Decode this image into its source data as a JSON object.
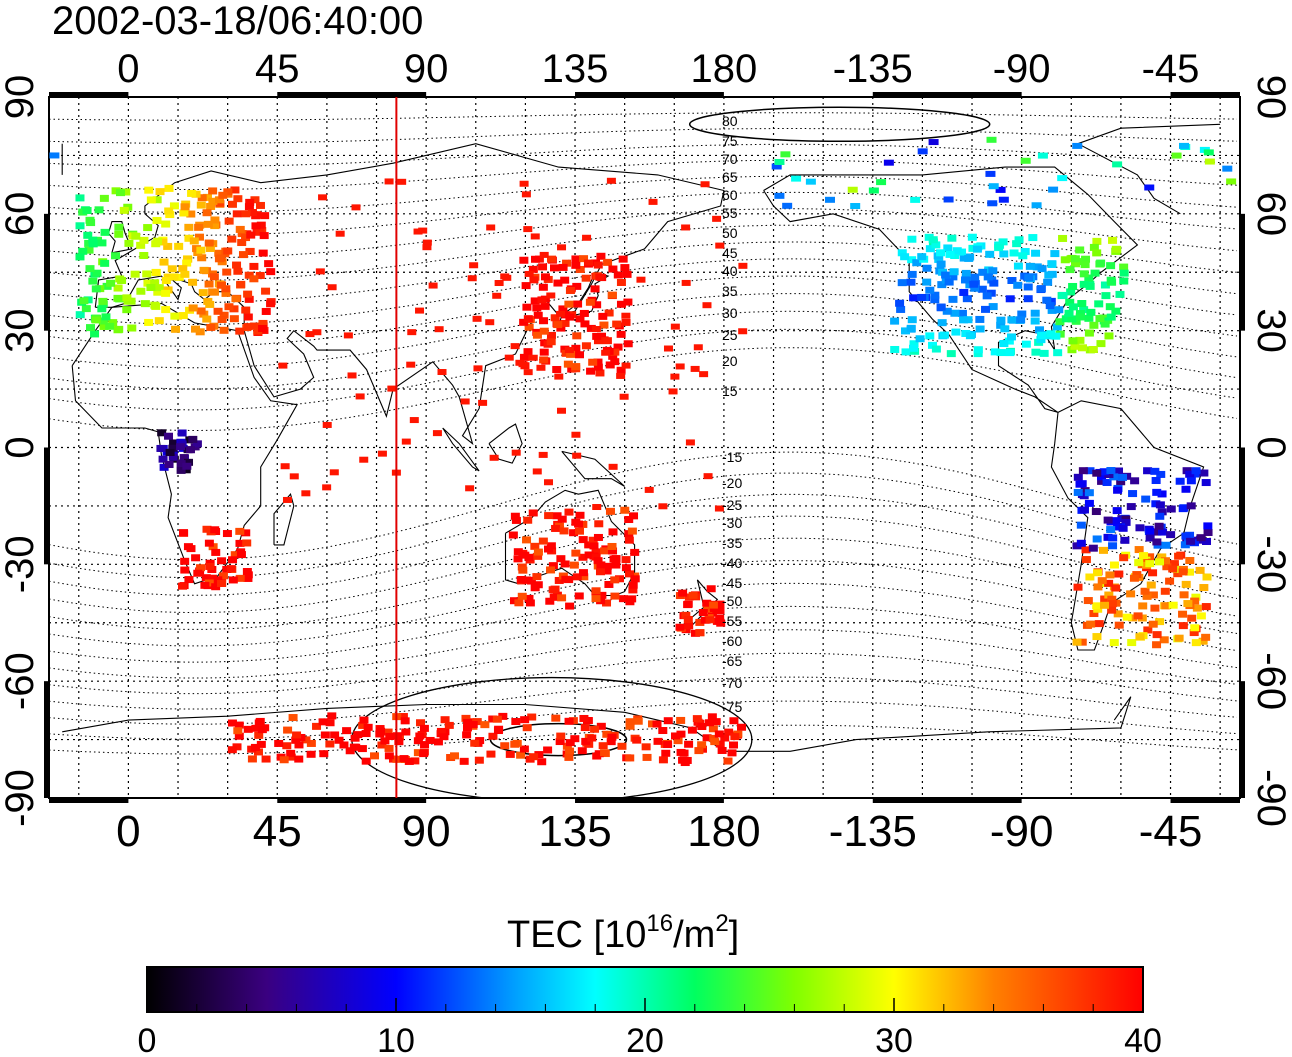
{
  "title": "2002-03-18/06:40:00",
  "axes": {
    "lon_ticks": [
      "0",
      "45",
      "90",
      "135",
      "180",
      "-135",
      "-90",
      "-45"
    ],
    "lat_ticks": [
      "90",
      "60",
      "30",
      "0",
      "-30",
      "-60",
      "-90"
    ]
  },
  "colorbar": {
    "label_main": "TEC  [10",
    "label_sup1": "16",
    "label_mid": "/m",
    "label_sup2": "2",
    "label_end": "]",
    "ticks": [
      "0",
      "10",
      "20",
      "30",
      "40"
    ],
    "min": 0,
    "max": 40
  },
  "contour_labels": [
    "80",
    "75",
    "70",
    "65",
    "60",
    "55",
    "50",
    "45",
    "40",
    "35",
    "30",
    "25",
    "20",
    "15",
    "-15",
    "-20",
    "-25",
    "-30",
    "-35",
    "-40",
    "-45",
    "-50",
    "-55",
    "-60",
    "-65",
    "-70",
    "-75"
  ],
  "marker_longitude": 81,
  "colors": {
    "high": "#ff1a1a",
    "marker_line": "#e00000"
  },
  "tec_regions": [
    {
      "name": "europe",
      "lon": [
        -16,
        42
      ],
      "lat": [
        30,
        68
      ],
      "tec": 35
    },
    {
      "name": "east-asia",
      "lon": [
        118,
        150
      ],
      "lat": [
        20,
        50
      ],
      "tec": 40
    },
    {
      "name": "north-america",
      "lon": [
        -130,
        -60
      ],
      "lat": [
        25,
        55
      ],
      "tec": 15
    },
    {
      "name": "australia",
      "lon": [
        115,
        152
      ],
      "lat": [
        -40,
        -15
      ],
      "tec": 40
    },
    {
      "name": "new-zealand",
      "lon": [
        165,
        178
      ],
      "lat": [
        -47,
        -35
      ],
      "tec": 40
    },
    {
      "name": "antarctica",
      "lon": [
        30,
        185
      ],
      "lat": [
        -80,
        -68
      ],
      "tec": 40
    },
    {
      "name": "south-america",
      "lon": [
        -75,
        -35
      ],
      "lat": [
        -50,
        -5
      ],
      "tec": 22
    },
    {
      "name": "africa-south",
      "lon": [
        15,
        35
      ],
      "lat": [
        -35,
        -20
      ],
      "tec": 40
    },
    {
      "name": "africa-central",
      "lon": [
        8,
        20
      ],
      "lat": [
        -5,
        5
      ],
      "tec": 5
    }
  ]
}
